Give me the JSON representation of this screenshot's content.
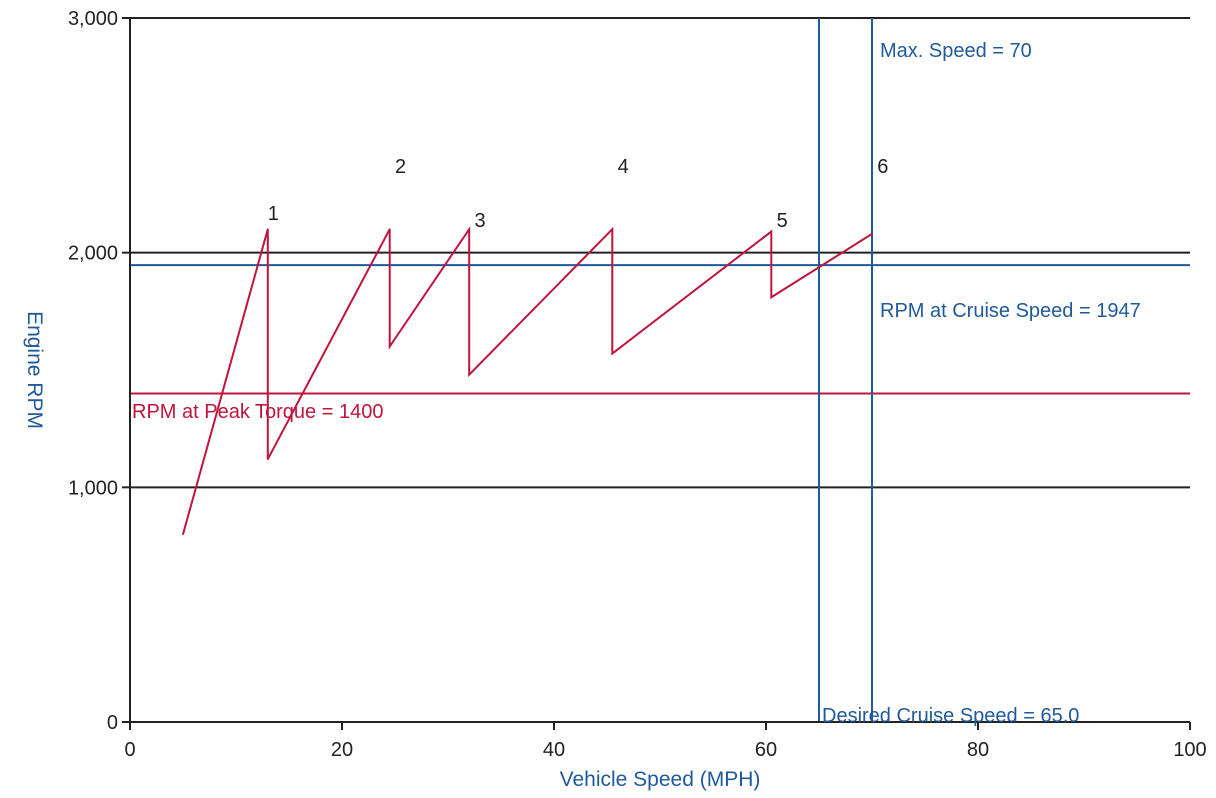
{
  "chart_data": {
    "type": "line",
    "title": "",
    "xlabel": "Vehicle Speed (MPH)",
    "ylabel": "Engine RPM",
    "xlim": [
      0,
      100
    ],
    "ylim": [
      0,
      3000
    ],
    "x_ticks": [
      {
        "value": 0,
        "label": "0"
      },
      {
        "value": 20,
        "label": "20"
      },
      {
        "value": 40,
        "label": "40"
      },
      {
        "value": 60,
        "label": "60"
      },
      {
        "value": 80,
        "label": "80"
      },
      {
        "value": 100,
        "label": "100"
      }
    ],
    "y_ticks": [
      {
        "value": 0,
        "label": "0"
      },
      {
        "value": 1000,
        "label": "1,000"
      },
      {
        "value": 2000,
        "label": "2,000"
      },
      {
        "value": 3000,
        "label": "3,000"
      }
    ],
    "gridlines_y": [
      1000,
      2000,
      3000
    ],
    "series": [
      {
        "color": "#c0143c",
        "points": [
          {
            "x": 5,
            "y": 800
          },
          {
            "x": 13,
            "y": 2100
          },
          {
            "x": 13,
            "y": 1120
          },
          {
            "x": 24.5,
            "y": 2100
          },
          {
            "x": 24.5,
            "y": 1600
          },
          {
            "x": 32,
            "y": 2100
          },
          {
            "x": 32,
            "y": 1480
          },
          {
            "x": 45.5,
            "y": 2100
          },
          {
            "x": 45.5,
            "y": 1570
          },
          {
            "x": 60.5,
            "y": 2090
          },
          {
            "x": 60.5,
            "y": 1810
          },
          {
            "x": 70,
            "y": 2080
          }
        ]
      }
    ],
    "gear_labels": [
      {
        "label": "1",
        "x": 13,
        "y": 2140
      },
      {
        "label": "2",
        "x": 25,
        "y": 2340
      },
      {
        "label": "3",
        "x": 32.5,
        "y": 2110
      },
      {
        "label": "4",
        "x": 46,
        "y": 2340
      },
      {
        "label": "5",
        "x": 61,
        "y": 2110
      },
      {
        "label": "6",
        "x": 70.5,
        "y": 2340
      }
    ],
    "reference_lines": [
      {
        "orientation": "horizontal",
        "value": 1947,
        "color": "#1f5a9a",
        "label": "RPM at Cruise Speed = 1947"
      },
      {
        "orientation": "horizontal",
        "value": 1400,
        "color": "#c0143c",
        "label": "RPM at Peak Torque = 1400"
      },
      {
        "orientation": "vertical",
        "value": 65,
        "color": "#1f5a9a",
        "label": "Desired Cruise Speed = 65.0"
      },
      {
        "orientation": "vertical",
        "value": 70,
        "color": "#1f5a9a",
        "label": "Max. Speed = 70"
      }
    ],
    "legend": "none"
  }
}
